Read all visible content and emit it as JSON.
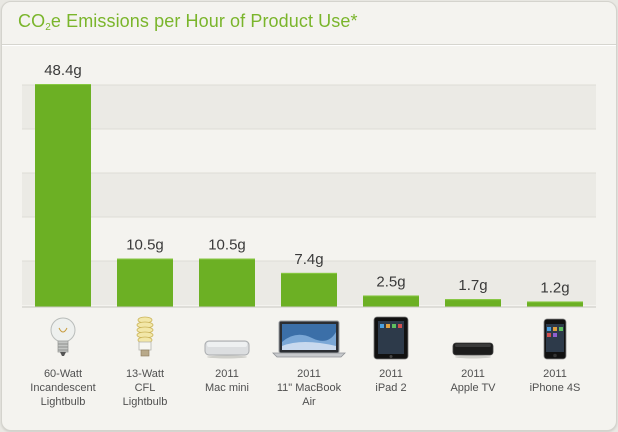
{
  "header": {
    "title_before": "CO",
    "title_sub": "2",
    "title_after": "e Emissions per Hour of Product Use*"
  },
  "chart_data": {
    "type": "bar",
    "title": "CO2e Emissions per Hour of Product Use*",
    "categories": [
      [
        "60-Watt",
        "Incandescent",
        "Lightbulb"
      ],
      [
        "13-Watt",
        "CFL",
        "Lightbulb"
      ],
      [
        "2011",
        "Mac mini"
      ],
      [
        "2011",
        "11\" MacBook",
        "Air"
      ],
      [
        "2011",
        "iPad 2"
      ],
      [
        "2011",
        "Apple TV"
      ],
      [
        "2011",
        "iPhone 4S"
      ]
    ],
    "values": [
      48.4,
      10.5,
      10.5,
      7.4,
      2.5,
      1.7,
      1.2
    ],
    "data_labels": [
      "48.4g",
      "10.5g",
      "10.5g",
      "7.4g",
      "2.5g",
      "1.7g",
      "1.2g"
    ],
    "bar_color": "#6cb024",
    "grid": true,
    "icons": [
      "lightbulb-incandescent-icon",
      "lightbulb-cfl-icon",
      "mac-mini-icon",
      "macbook-air-icon",
      "ipad-icon",
      "apple-tv-icon",
      "iphone-icon"
    ]
  }
}
